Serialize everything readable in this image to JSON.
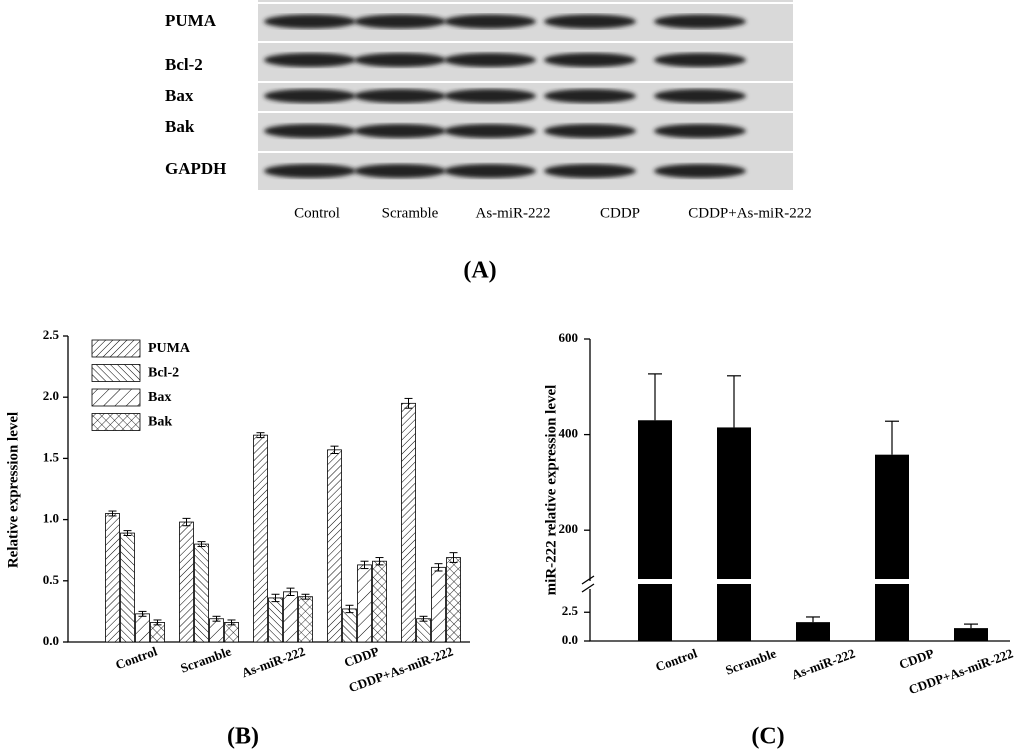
{
  "figure": {
    "blot": {
      "proteins": [
        "PUMA",
        "Bcl-2",
        "Bax",
        "Bak",
        "GAPDH"
      ],
      "lanes": [
        "Control",
        "Scramble",
        "As-miR-222",
        "CDDP",
        "CDDP+As-miR-222"
      ]
    },
    "panel_labels": [
      "(A)",
      "(B)",
      "(C)"
    ]
  },
  "chart_data": [
    {
      "type": "bar",
      "y_label": "Relative expression level",
      "categories": [
        "Control",
        "Scramble",
        "As-miR-222",
        "CDDP",
        "CDDP+As-miR-222"
      ],
      "series": [
        {
          "name": "PUMA",
          "color": "#000000",
          "hatch": "diagonal-dense",
          "values": [
            1.05,
            0.98,
            1.69,
            1.57,
            1.95
          ],
          "errors": [
            0.02,
            0.03,
            0.02,
            0.03,
            0.04
          ]
        },
        {
          "name": "Bcl-2",
          "color": "#000000",
          "hatch": "back-diagonal",
          "values": [
            0.89,
            0.8,
            0.36,
            0.27,
            0.19
          ],
          "errors": [
            0.02,
            0.02,
            0.03,
            0.03,
            0.02
          ]
        },
        {
          "name": "Bax",
          "color": "#000000",
          "hatch": "diagonal",
          "values": [
            0.23,
            0.19,
            0.41,
            0.63,
            0.61
          ],
          "errors": [
            0.02,
            0.02,
            0.03,
            0.03,
            0.03
          ]
        },
        {
          "name": "Bak",
          "color": "#000000",
          "hatch": "cross",
          "values": [
            0.16,
            0.16,
            0.37,
            0.66,
            0.69
          ],
          "errors": [
            0.02,
            0.02,
            0.02,
            0.03,
            0.04
          ]
        }
      ],
      "ylim": [
        0,
        2.5
      ],
      "yticks": [
        {
          "value": 0,
          "label": "0.0"
        },
        0.5,
        {
          "value": 1,
          "label": "1.0"
        },
        1.5,
        {
          "value": 2,
          "label": "2.0"
        },
        2.5
      ],
      "legend": "upper-left"
    },
    {
      "type": "broken-bar",
      "y_label": "miR-222 relative expression level",
      "categories": [
        "Control",
        "Scramble",
        "As-miR-222",
        "CDDP",
        "CDDP+As-miR-222"
      ],
      "color": "#000000",
      "values": [
        430,
        415,
        1.64,
        358,
        1.12
      ],
      "errors": [
        97,
        108,
        0.45,
        70,
        0.35
      ],
      "ylim": [
        0,
        600
      ],
      "axis_break": [
        4,
        100
      ],
      "yticks": [
        {
          "value": 0,
          "label": "0.0"
        },
        2.5,
        200,
        400,
        600
      ]
    }
  ]
}
